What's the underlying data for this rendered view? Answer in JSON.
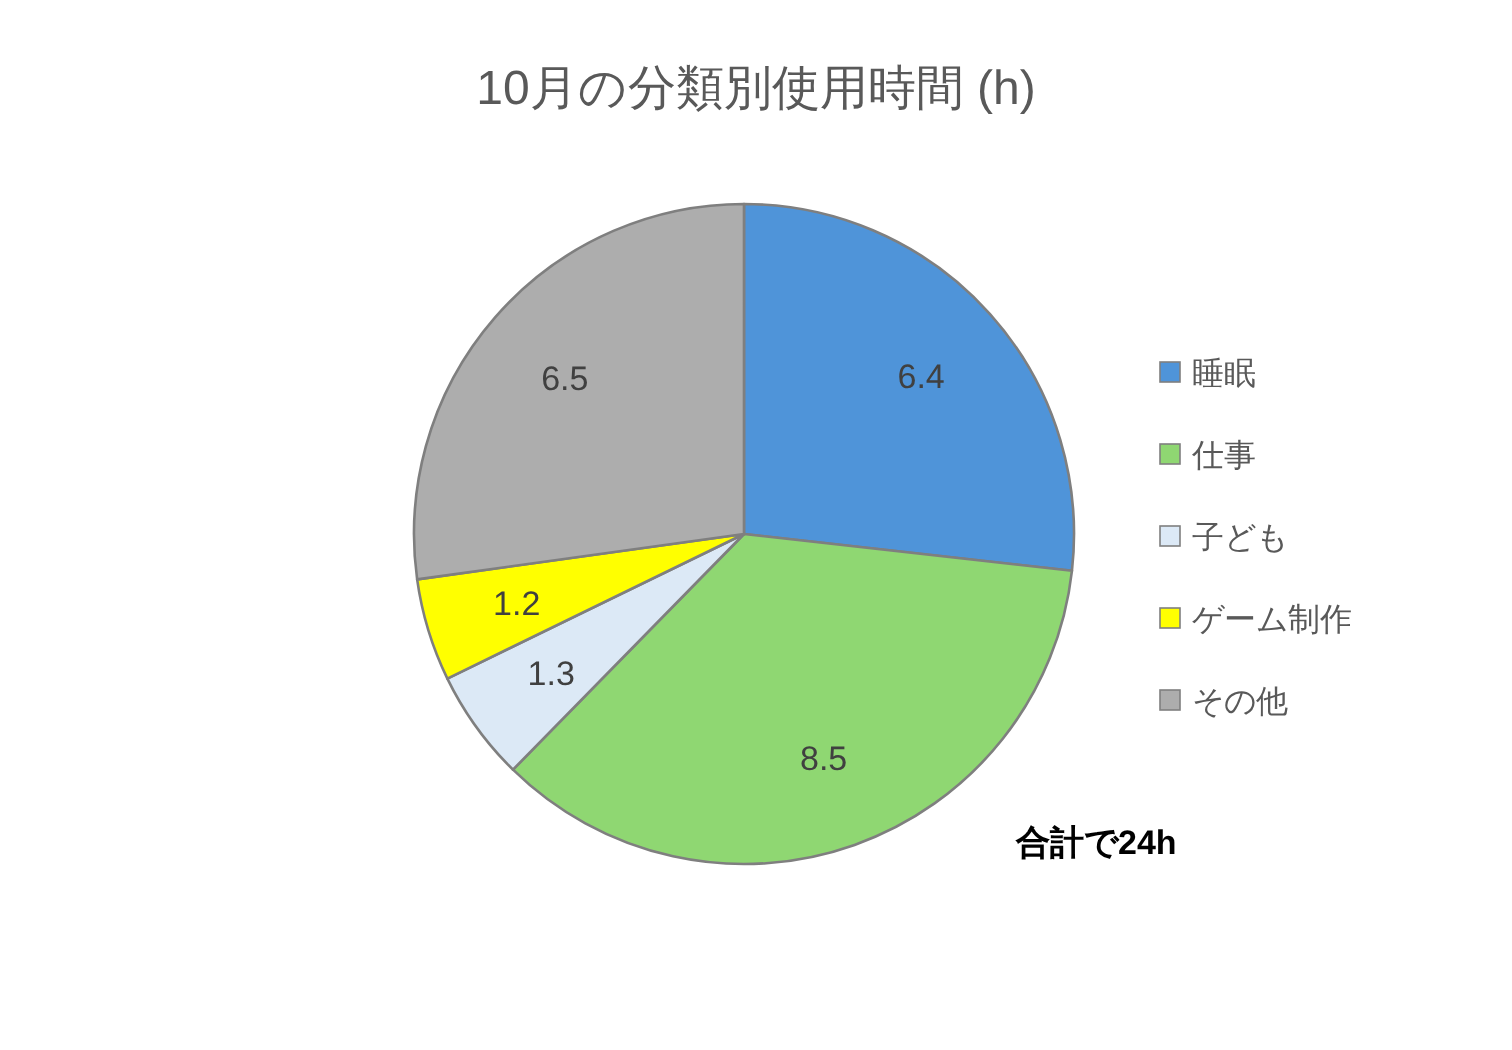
{
  "chart_data": {
    "type": "pie",
    "title": "10月の分類別使用時間 (h)",
    "categories": [
      "睡眠",
      "仕事",
      "子ども",
      "ゲーム制作",
      "その他"
    ],
    "values": [
      6.4,
      8.5,
      1.3,
      1.2,
      6.5
    ],
    "colors": [
      "#4f94d9",
      "#8fd772",
      "#dce9f6",
      "#ffff00",
      "#adadad"
    ],
    "data_labels": true,
    "legend": "right",
    "annotations": [
      "合計で24h"
    ]
  }
}
